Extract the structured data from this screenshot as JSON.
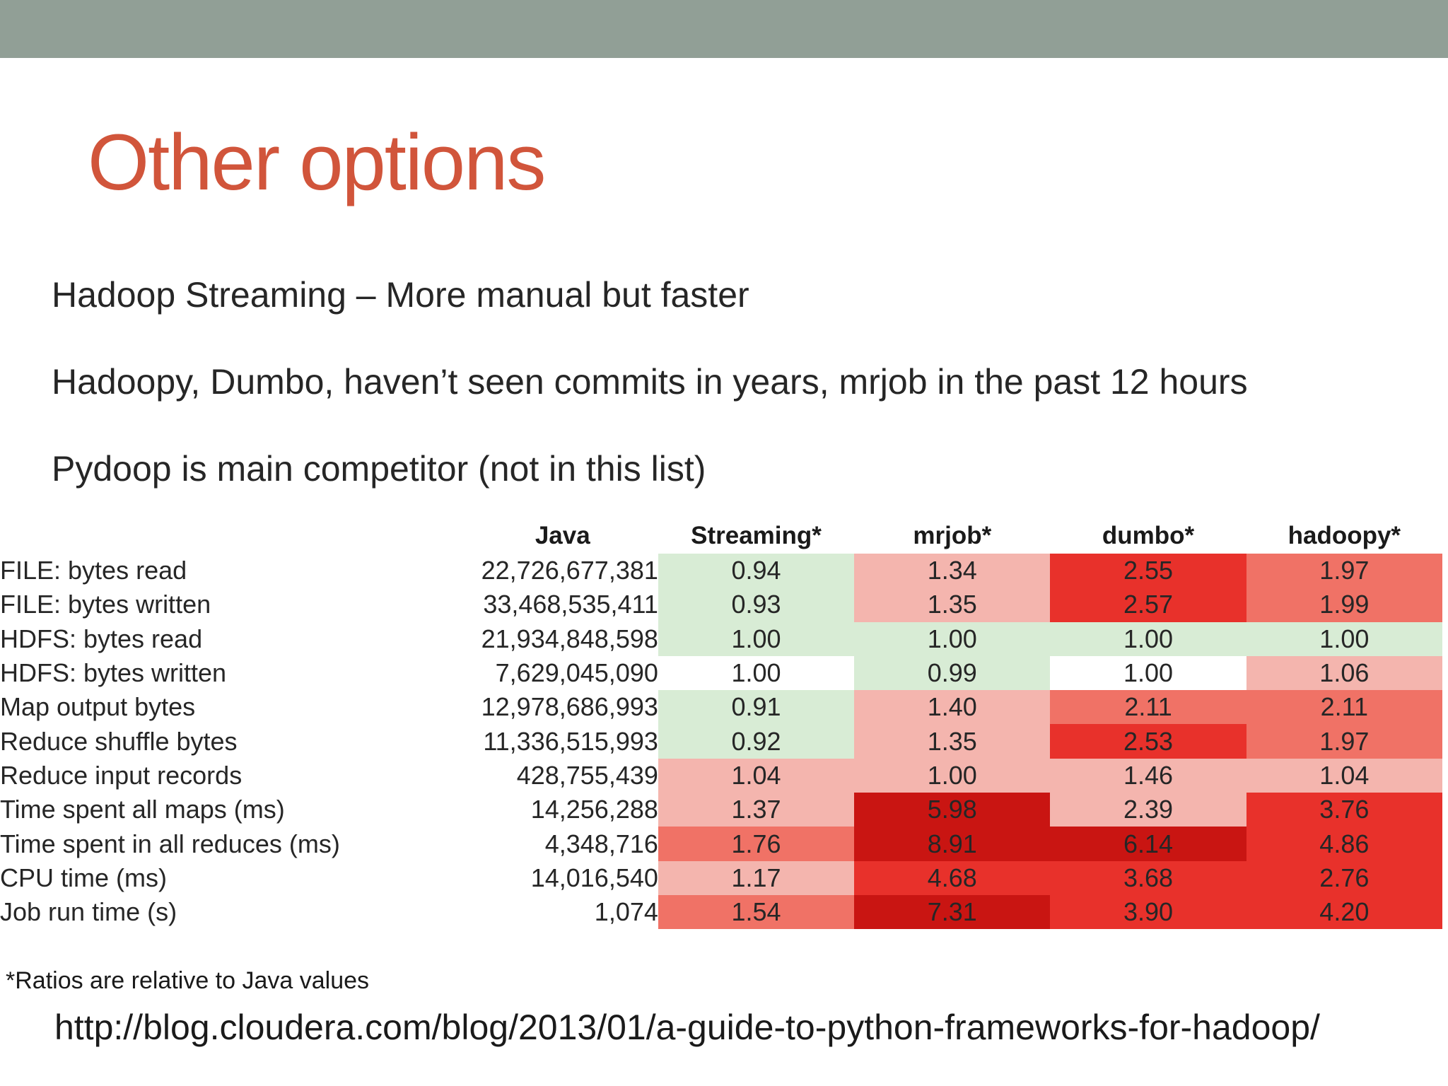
{
  "slide": {
    "title": "Other options",
    "bullets": [
      "Hadoop Streaming – More manual but faster",
      "Hadoopy, Dumbo, haven’t seen commits in years, mrjob in the past 12 hours",
      "Pydoop is main competitor (not in this list)"
    ],
    "footnote": "*Ratios are relative to Java values",
    "link": "http://blog.cloudera.com/blog/2013/01/a-guide-to-python-frameworks-for-hadoop/"
  },
  "colors": {
    "top_bar": "#919f96",
    "title": "#d1553b",
    "cell_green": "#d8ecd5",
    "cell_white": "#ffffff",
    "cell_pink": "#f4b5ae",
    "cell_salmon": "#f07266",
    "cell_red": "#e8312b",
    "cell_dark_red": "#c91512"
  },
  "table": {
    "headers": [
      "",
      "Java",
      "Streaming*",
      "mrjob*",
      "dumbo*",
      "hadoopy*"
    ],
    "rows": [
      {
        "label": "FILE: bytes read",
        "java": "22,726,677,381",
        "ratios": [
          "0.94",
          "1.34",
          "2.55",
          "1.97"
        ]
      },
      {
        "label": "FILE: bytes written",
        "java": "33,468,535,411",
        "ratios": [
          "0.93",
          "1.35",
          "2.57",
          "1.99"
        ]
      },
      {
        "label": "HDFS: bytes read",
        "java": "21,934,848,598",
        "ratios": [
          "1.00",
          "1.00",
          "1.00",
          "1.00"
        ]
      },
      {
        "label": "HDFS: bytes written",
        "java": "7,629,045,090",
        "ratios": [
          "1.00",
          "0.99",
          "1.00",
          "1.06"
        ]
      },
      {
        "label": "Map output bytes",
        "java": "12,978,686,993",
        "ratios": [
          "0.91",
          "1.40",
          "2.11",
          "2.11"
        ]
      },
      {
        "label": "Reduce shuffle bytes",
        "java": "11,336,515,993",
        "ratios": [
          "0.92",
          "1.35",
          "2.53",
          "1.97"
        ]
      },
      {
        "label": "Reduce input records",
        "java": "428,755,439",
        "ratios": [
          "1.04",
          "1.00",
          "1.46",
          "1.04"
        ]
      },
      {
        "label": "Time spent all maps (ms)",
        "java": "14,256,288",
        "ratios": [
          "1.37",
          "5.98",
          "2.39",
          "3.76"
        ]
      },
      {
        "label": "Time spent in all reduces (ms)",
        "java": "4,348,716",
        "ratios": [
          "1.76",
          "8.91",
          "6.14",
          "4.86"
        ]
      },
      {
        "label": "CPU time (ms)",
        "java": "14,016,540",
        "ratios": [
          "1.17",
          "4.68",
          "3.68",
          "2.76"
        ]
      },
      {
        "label": "Job run time (s)",
        "java": "1,074",
        "ratios": [
          "1.54",
          "7.31",
          "3.90",
          "4.20"
        ]
      }
    ],
    "cell_colors": [
      [
        "green",
        "pink",
        "red",
        "salmon"
      ],
      [
        "green",
        "pink",
        "red",
        "salmon"
      ],
      [
        "green",
        "green",
        "green",
        "green"
      ],
      [
        "white",
        "green",
        "white",
        "pink"
      ],
      [
        "green",
        "pink",
        "salmon",
        "salmon"
      ],
      [
        "green",
        "pink",
        "red",
        "salmon"
      ],
      [
        "pink",
        "pink",
        "pink",
        "pink"
      ],
      [
        "pink",
        "dark_red",
        "pink",
        "red"
      ],
      [
        "salmon",
        "dark_red",
        "dark_red",
        "red"
      ],
      [
        "pink",
        "red",
        "red",
        "red"
      ],
      [
        "salmon",
        "dark_red",
        "red",
        "red"
      ]
    ]
  }
}
